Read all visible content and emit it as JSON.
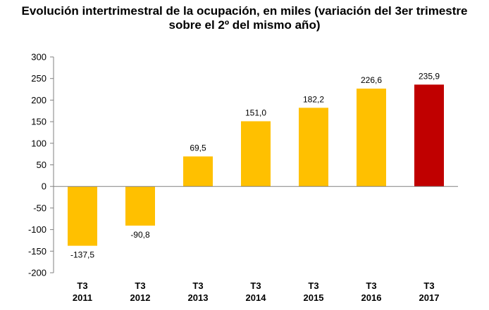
{
  "chart_data": {
    "type": "bar",
    "title_lines": [
      "Evolución intertrimestral de la ocupación, en miles (variación del 3er trimestre",
      "sobre el 2º del mismo año)"
    ],
    "categories": [
      [
        "T3",
        "2011"
      ],
      [
        "T3",
        "2012"
      ],
      [
        "T3",
        "2013"
      ],
      [
        "T3",
        "2014"
      ],
      [
        "T3",
        "2015"
      ],
      [
        "T3",
        "2016"
      ],
      [
        "T3",
        "2017"
      ]
    ],
    "values": [
      -137.5,
      -90.8,
      69.5,
      151.0,
      182.2,
      226.6,
      235.9
    ],
    "data_labels": [
      "-137,5",
      "-90,8",
      "69,5",
      "151,0",
      "182,2",
      "226,6",
      "235,9"
    ],
    "bar_colors": [
      "#FFC000",
      "#FFC000",
      "#FFC000",
      "#FFC000",
      "#FFC000",
      "#FFC000",
      "#C00000"
    ],
    "yticks": [
      300,
      250,
      200,
      150,
      100,
      50,
      0,
      -50,
      -100,
      -150,
      -200
    ],
    "ylim": [
      -200,
      300
    ],
    "xlabel": "",
    "ylabel": "",
    "grid": false,
    "legend": "none"
  }
}
